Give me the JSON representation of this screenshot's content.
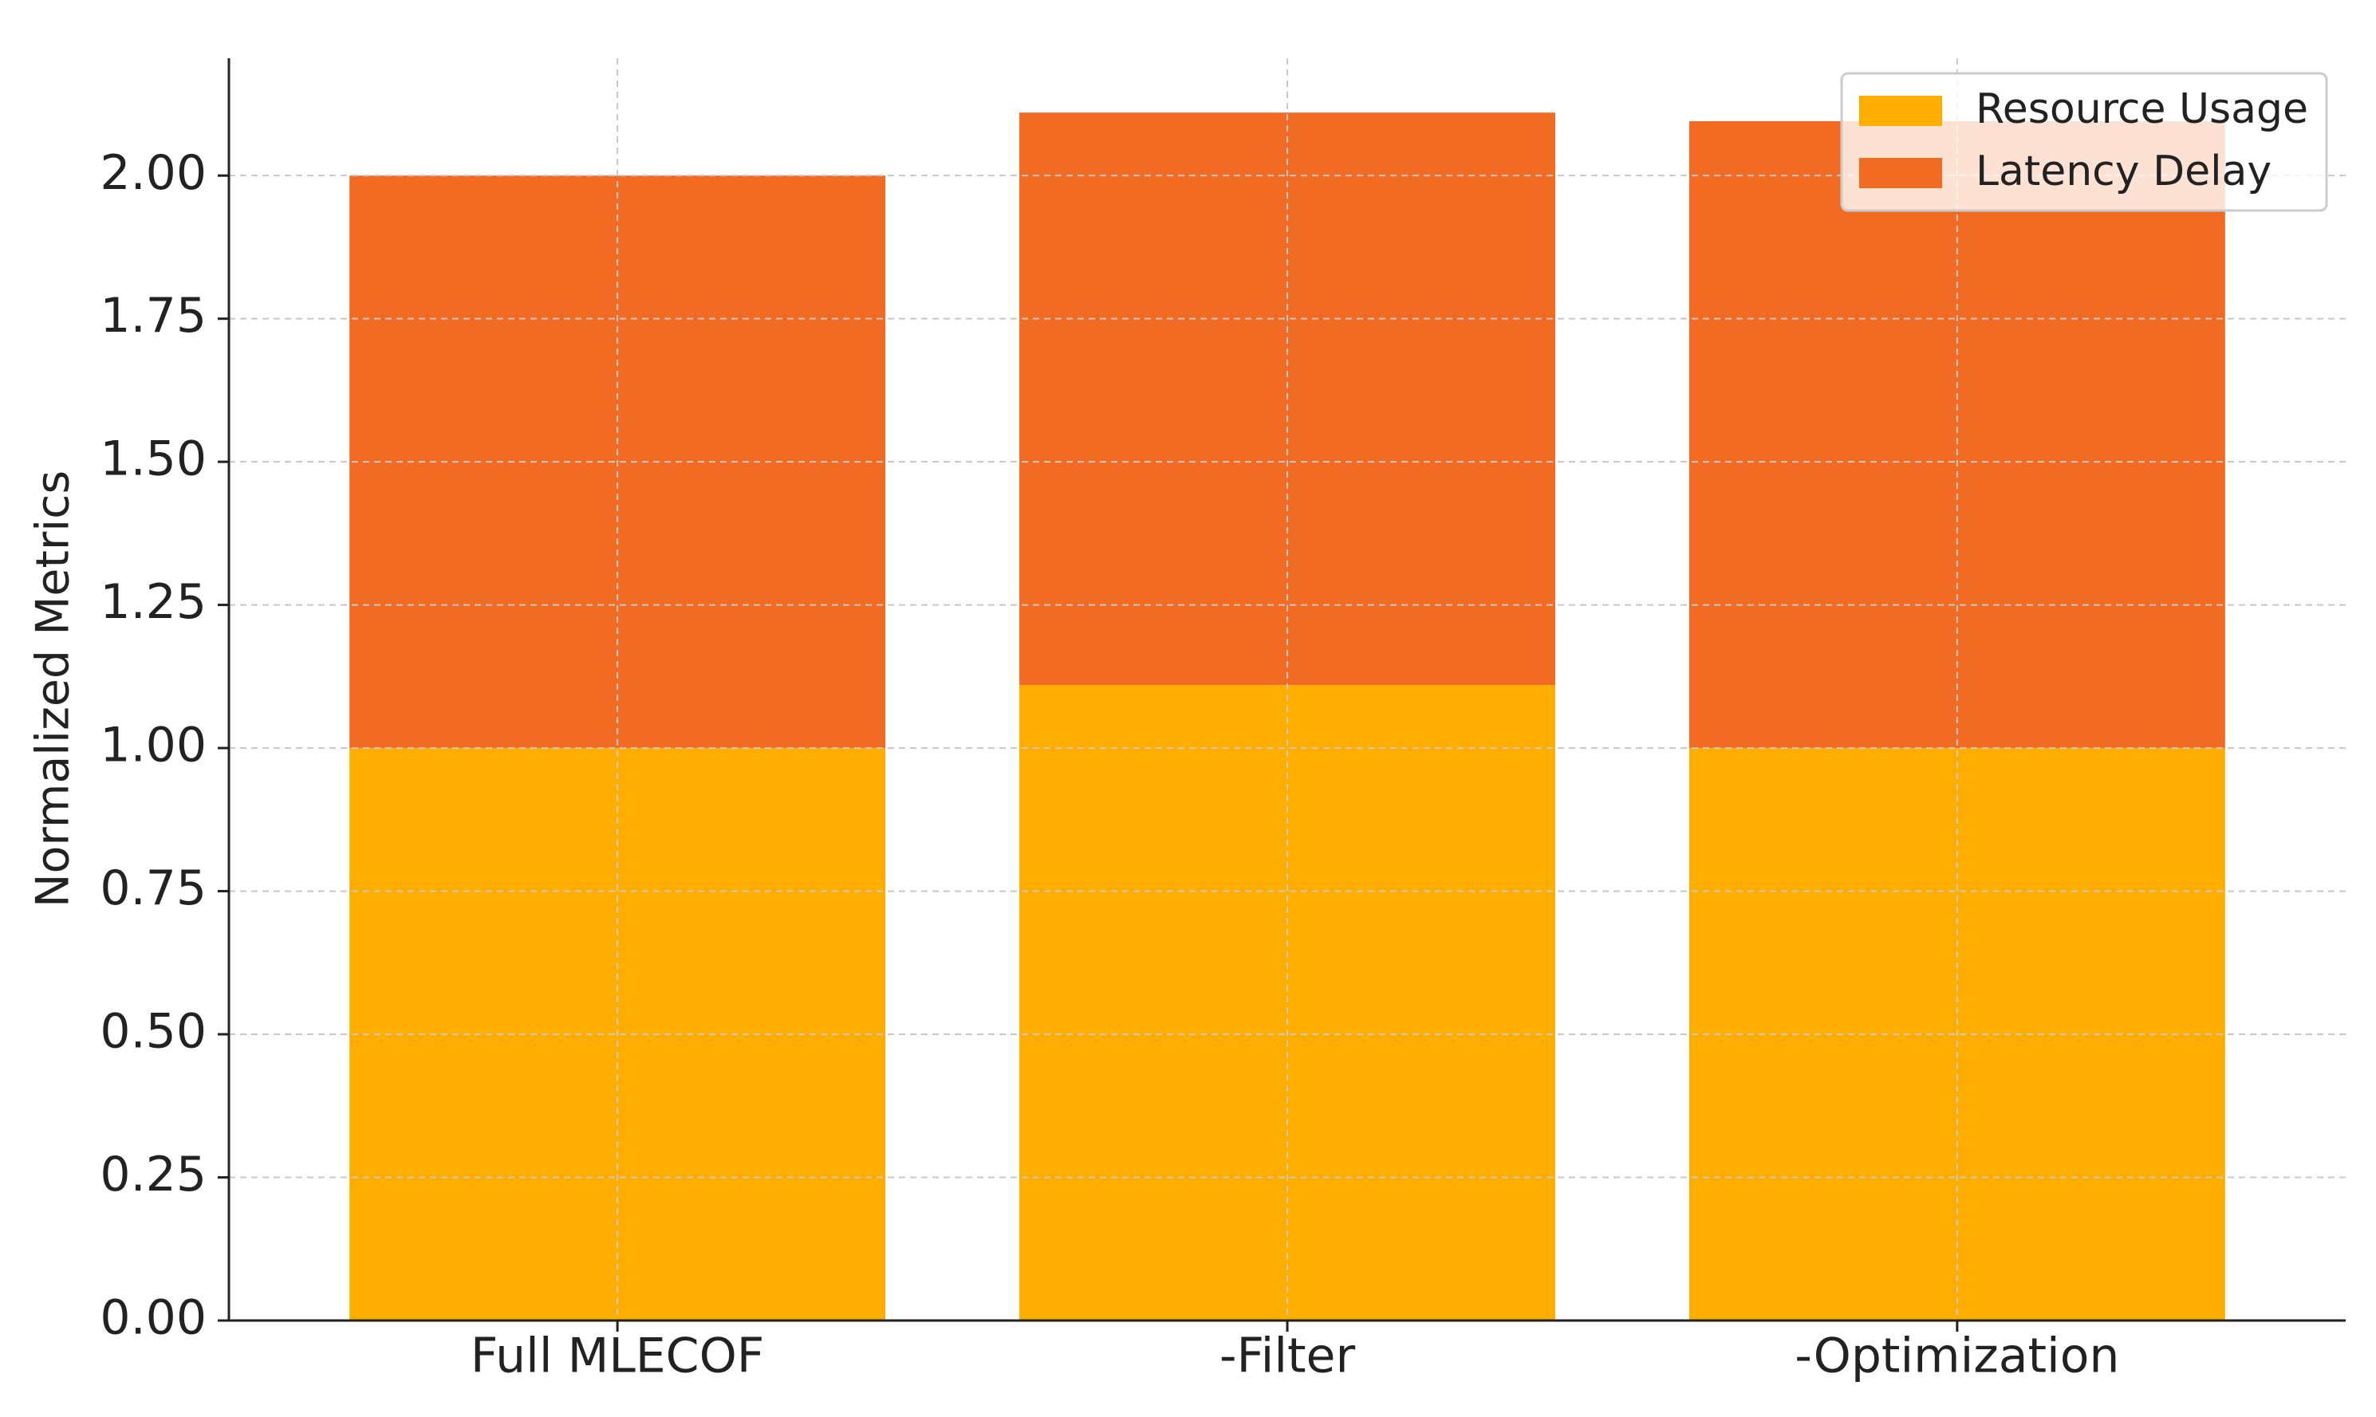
{
  "chart_data": {
    "type": "bar",
    "stacked": true,
    "y_label": "Normalized Metrics",
    "categories": [
      "Full MLECOF",
      "-Filter",
      "-Optimization"
    ],
    "series": [
      {
        "name": "Resource Usage",
        "color": "#ffae00",
        "values": [
          1.0,
          1.11,
          1.0
        ]
      },
      {
        "name": "Latency Delay",
        "color": "#f26b22",
        "values": [
          1.0,
          1.0,
          1.095
        ]
      }
    ],
    "ylim": [
      0,
      2.205
    ],
    "yticks": [
      {
        "value": 0,
        "label": "0.00"
      },
      {
        "value": 0.25,
        "label": "0.25"
      },
      {
        "value": 0.5,
        "label": "0.50"
      },
      {
        "value": 0.75,
        "label": "0.75"
      },
      {
        "value": 1,
        "label": "1.00"
      },
      {
        "value": 1.25,
        "label": "1.25"
      },
      {
        "value": 1.5,
        "label": "1.50"
      },
      {
        "value": 1.75,
        "label": "1.75"
      },
      {
        "value": 2,
        "label": "2.00"
      }
    ],
    "grid": true,
    "legend": "upper right"
  }
}
